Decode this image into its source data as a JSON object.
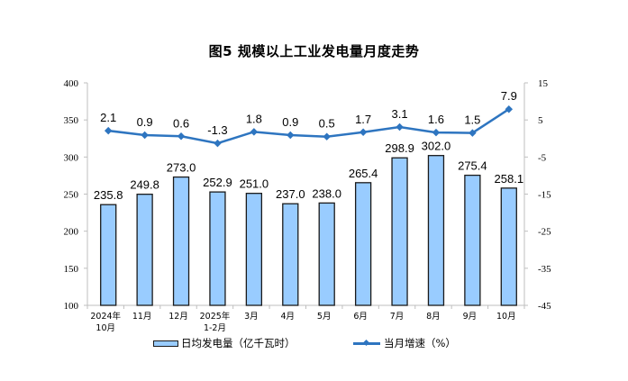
{
  "chart_data": {
    "type": "bar+line",
    "title": "图5  规模以上工业发电量月度走势",
    "categories": [
      "2024年\n10月",
      "11月",
      "12月",
      "2025年\n1-2月",
      "3月",
      "4月",
      "5月",
      "6月",
      "7月",
      "8月",
      "9月",
      "10月"
    ],
    "category_lines": [
      [
        "2024年",
        "10月"
      ],
      [
        "11月"
      ],
      [
        "12月"
      ],
      [
        "2025年",
        "1-2月"
      ],
      [
        "3月"
      ],
      [
        "4月"
      ],
      [
        "5月"
      ],
      [
        "6月"
      ],
      [
        "7月"
      ],
      [
        "8月"
      ],
      [
        "9月"
      ],
      [
        "10月"
      ]
    ],
    "series": [
      {
        "name": "日均发电量（亿千瓦时）",
        "type": "bar",
        "axis": "left",
        "color": "#99CCFF",
        "values": [
          235.8,
          249.8,
          273.0,
          252.9,
          251.0,
          237.0,
          238.0,
          265.4,
          298.9,
          302.0,
          275.4,
          258.1
        ],
        "labels": [
          "235.8",
          "249.8",
          "273.0",
          "252.9",
          "251.0",
          "237.0",
          "238.0",
          "265.4",
          "298.9",
          "302.0",
          "275.4",
          "258.1"
        ]
      },
      {
        "name": "当月增速（%）",
        "type": "line",
        "axis": "right",
        "color": "#2E75C0",
        "values": [
          2.1,
          0.9,
          0.6,
          -1.3,
          1.8,
          0.9,
          0.5,
          1.7,
          3.1,
          1.6,
          1.5,
          7.9
        ],
        "labels": [
          "2.1",
          "0.9",
          "0.6",
          "-1.3",
          "1.8",
          "0.9",
          "0.5",
          "1.7",
          "3.1",
          "1.6",
          "1.5",
          "7.9"
        ]
      }
    ],
    "y_left": {
      "min": 100,
      "max": 400,
      "ticks": [
        "400",
        "350",
        "300",
        "250",
        "200",
        "150",
        "100"
      ]
    },
    "y_right": {
      "min": -45,
      "max": 15,
      "ticks": [
        "15",
        "5",
        "-5",
        "-15",
        "-25",
        "-35",
        "-45"
      ]
    },
    "xlabel": "",
    "ylabel": "",
    "grid": false,
    "legend_position": "bottom"
  },
  "legend": {
    "bar_label": "日均发电量（亿千瓦时）",
    "line_label": "当月增速（%）"
  }
}
